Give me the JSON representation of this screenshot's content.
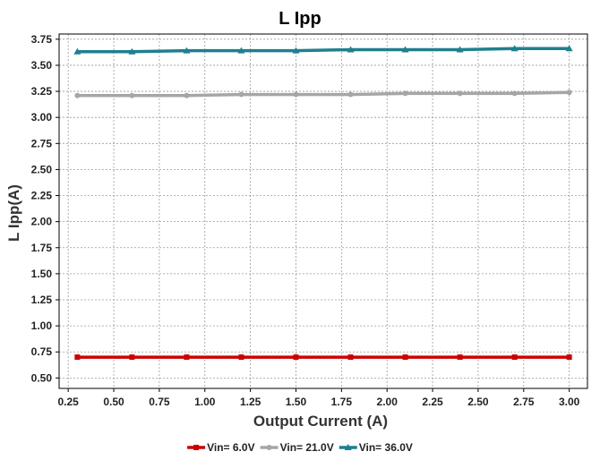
{
  "chart_data": {
    "type": "line",
    "title": "L Ipp",
    "xlabel": "Output Current (A)",
    "ylabel": "L Ipp(A)",
    "xlim": [
      0.2,
      3.1
    ],
    "ylim": [
      0.4,
      3.8
    ],
    "xticks": [
      "0.25",
      "0.50",
      "0.75",
      "1.00",
      "1.25",
      "1.50",
      "1.75",
      "2.00",
      "2.25",
      "2.50",
      "2.75",
      "3.00"
    ],
    "yticks": [
      "0.50",
      "0.75",
      "1.00",
      "1.25",
      "1.50",
      "1.75",
      "2.00",
      "2.25",
      "2.50",
      "2.75",
      "3.00",
      "3.25",
      "3.50",
      "3.75"
    ],
    "grid": true,
    "legend_position": "bottom",
    "x": [
      0.3,
      0.6,
      0.9,
      1.2,
      1.5,
      1.8,
      2.1,
      2.4,
      2.7,
      3.0
    ],
    "series": [
      {
        "name": "Vin= 6.0V",
        "color": "#cc0000",
        "marker": "square",
        "values": [
          0.7,
          0.7,
          0.7,
          0.7,
          0.7,
          0.7,
          0.7,
          0.7,
          0.7,
          0.7
        ]
      },
      {
        "name": "Vin= 21.0V",
        "color": "#a6a6a6",
        "marker": "circle",
        "values": [
          3.21,
          3.21,
          3.21,
          3.22,
          3.22,
          3.22,
          3.23,
          3.23,
          3.23,
          3.24
        ]
      },
      {
        "name": "Vin= 36.0V",
        "color": "#1f7f8f",
        "marker": "triangle",
        "values": [
          3.63,
          3.63,
          3.64,
          3.64,
          3.64,
          3.65,
          3.65,
          3.65,
          3.66,
          3.66
        ]
      }
    ]
  }
}
